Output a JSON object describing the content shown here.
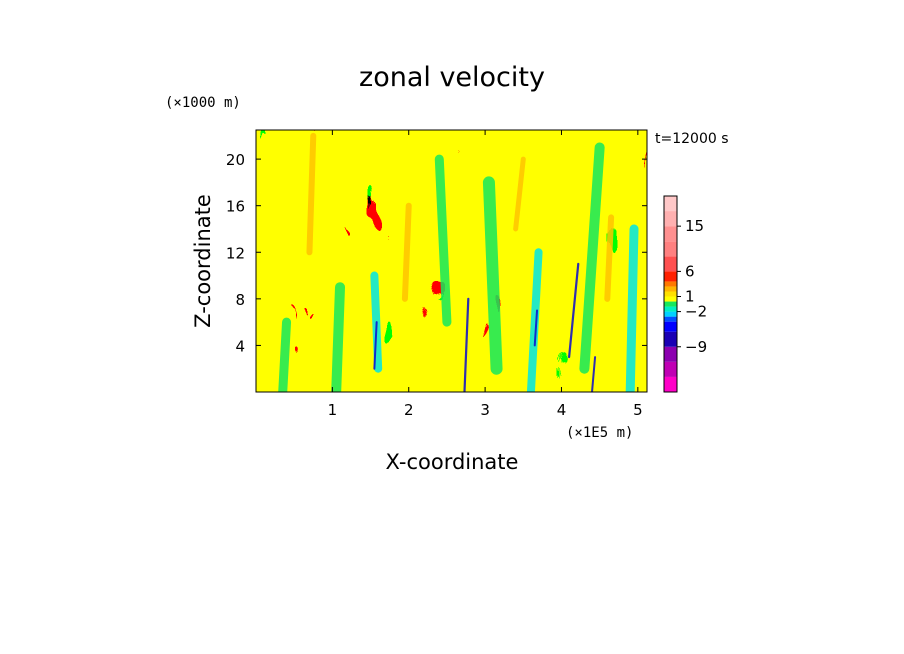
{
  "chart_data": {
    "type": "heatmap",
    "title": "zonal velocity",
    "xlabel": "X-coordinate",
    "ylabel": "Z-coordinate",
    "x_unit": "(×1E5 m)",
    "y_unit": "(×1000 m)",
    "time_label": "t=12000 s",
    "xlim": [
      0,
      5.12
    ],
    "ylim": [
      0,
      22.5
    ],
    "x_ticks": [
      1,
      2,
      3,
      4,
      5
    ],
    "x_tick_labels": [
      "1",
      "2",
      "3",
      "4",
      "5"
    ],
    "y_ticks": [
      4,
      8,
      12,
      16,
      20
    ],
    "y_tick_labels": [
      "4",
      "8",
      "12",
      "16",
      "20"
    ],
    "colorbar": {
      "levels": [
        -18,
        -15,
        -12,
        -9,
        -6,
        -4,
        -3,
        -2,
        -1,
        0,
        1,
        2,
        3,
        4,
        6,
        9,
        12,
        15,
        18,
        21
      ],
      "colors": [
        "#ff00c8",
        "#c000b4",
        "#8c00b0",
        "#1a00b4",
        "#0000ff",
        "#0050ff",
        "#00d2ff",
        "#00f0c0",
        "#16e85c",
        "#ffff00",
        "#ffe000",
        "#ffb400",
        "#ff7800",
        "#ff2000",
        "#ff5050",
        "#ff8080",
        "#ff9090",
        "#ffb0b0",
        "#ffc8c8"
      ],
      "tick_values": [
        15,
        6,
        1,
        -2,
        -9
      ],
      "tick_labels": [
        "15",
        "6",
        "1",
        "−2",
        "−9"
      ]
    },
    "fill_colors": {
      "background": "#ffff00",
      "green": "#16e85c",
      "cyan": "#00e6e6",
      "orange": "#ffc400",
      "blue": "#0a0ad0"
    }
  }
}
